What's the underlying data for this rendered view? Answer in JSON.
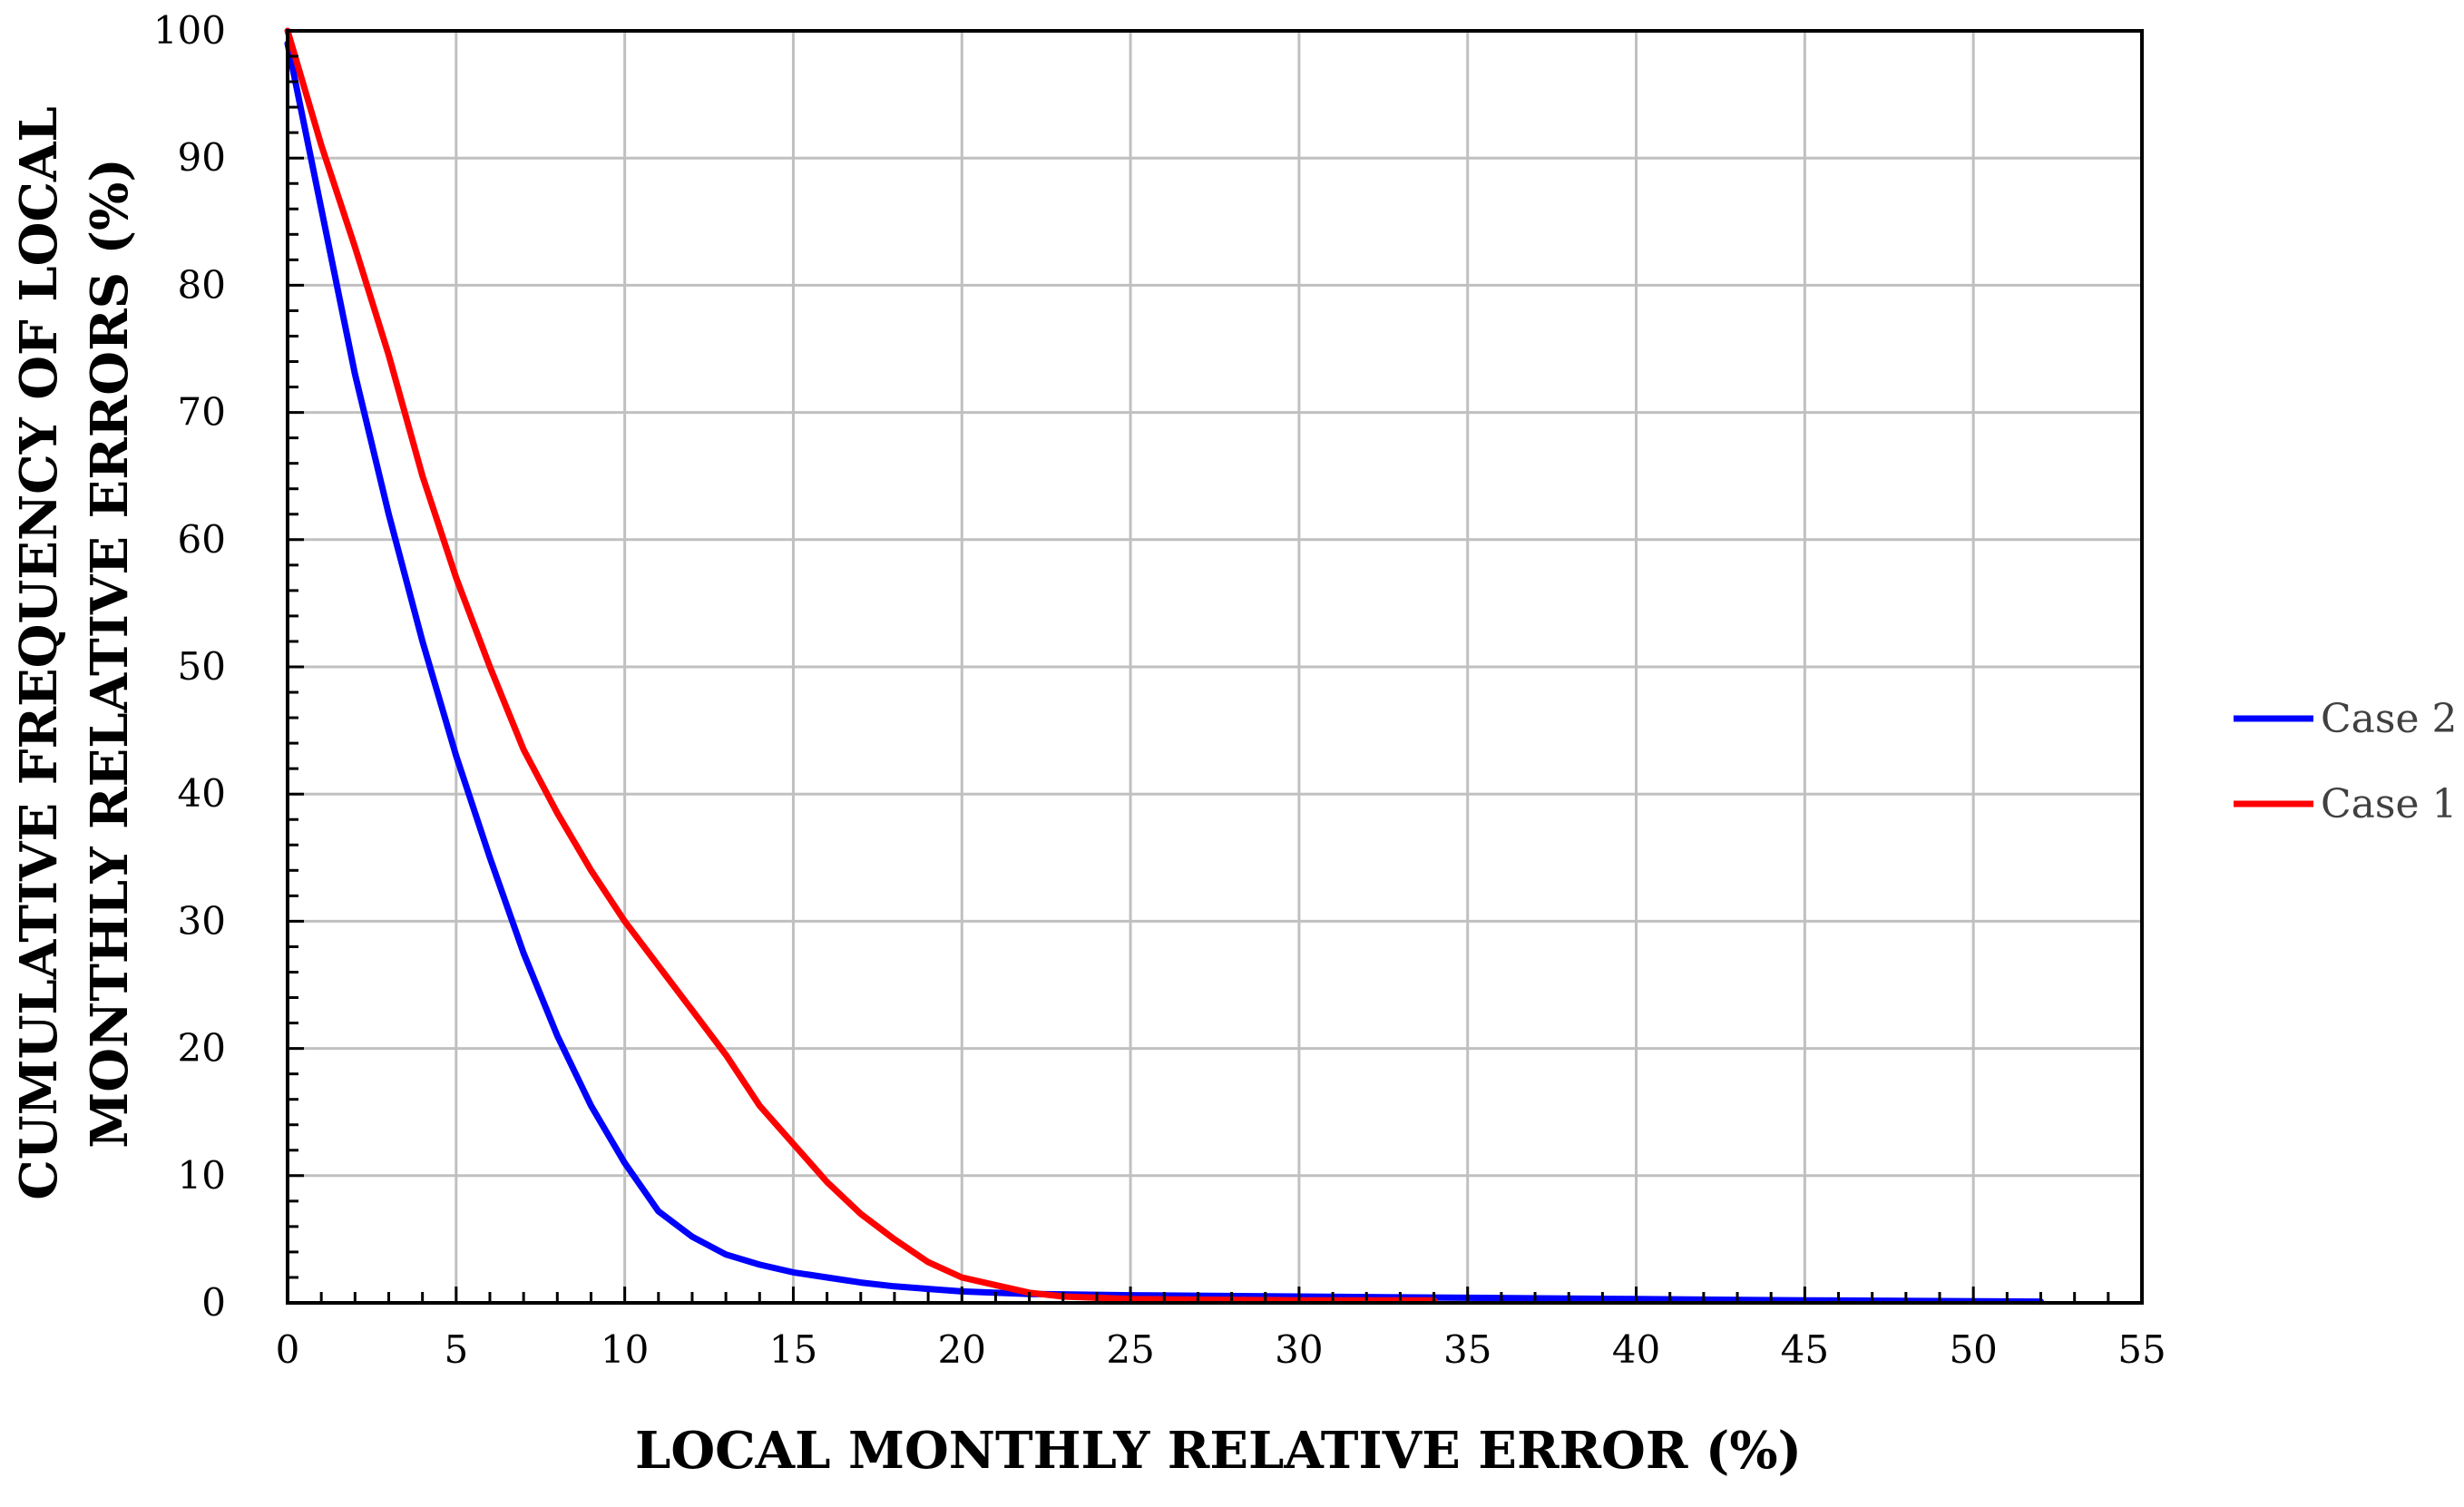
{
  "chart_data": {
    "type": "line",
    "xlabel": "LOCAL MONTHLY RELATIVE ERROR (%)",
    "ylabel_lines": [
      "CUMULATIVE FREQUENCY OF LOCAL",
      "MONTHLY RELATIVE ERRORS (%)"
    ],
    "xlim": [
      0,
      55
    ],
    "ylim": [
      0,
      100
    ],
    "x_ticks": [
      0,
      5,
      10,
      15,
      20,
      25,
      30,
      35,
      40,
      45,
      50,
      55
    ],
    "y_ticks": [
      0,
      10,
      20,
      30,
      40,
      50,
      60,
      70,
      80,
      90,
      100
    ],
    "x_tick_labels": [
      "0",
      "5",
      "10",
      "15",
      "20",
      "25",
      "30",
      "35",
      "40",
      "45",
      "50",
      "55"
    ],
    "y_tick_labels": [
      "0",
      "10",
      "20",
      "30",
      "40",
      "50",
      "60",
      "70",
      "80",
      "90",
      "100"
    ],
    "x_minor_step": 1,
    "y_minor_step": 2,
    "grid": true,
    "legend_position": "right",
    "series": [
      {
        "name": "Case 2",
        "color": "#0000ff",
        "points": [
          [
            0,
            99
          ],
          [
            1,
            86
          ],
          [
            2,
            73
          ],
          [
            3,
            62
          ],
          [
            4,
            52
          ],
          [
            5,
            43
          ],
          [
            6,
            35
          ],
          [
            7,
            27.5
          ],
          [
            8,
            21
          ],
          [
            9,
            15.5
          ],
          [
            10,
            11
          ],
          [
            11,
            7.2
          ],
          [
            12,
            5.2
          ],
          [
            13,
            3.8
          ],
          [
            14,
            3
          ],
          [
            15,
            2.4
          ],
          [
            16,
            2
          ],
          [
            17,
            1.6
          ],
          [
            18,
            1.3
          ],
          [
            19,
            1.1
          ],
          [
            20,
            0.9
          ],
          [
            22,
            0.7
          ],
          [
            25,
            0.6
          ],
          [
            30,
            0.5
          ],
          [
            35,
            0.4
          ],
          [
            40,
            0.3
          ],
          [
            45,
            0.2
          ],
          [
            52,
            0.1
          ]
        ]
      },
      {
        "name": "Case 1",
        "color": "#ff0000",
        "points": [
          [
            0,
            100
          ],
          [
            1,
            91
          ],
          [
            2,
            83
          ],
          [
            3,
            74.5
          ],
          [
            4,
            65
          ],
          [
            5,
            57
          ],
          [
            6,
            50
          ],
          [
            7,
            43.5
          ],
          [
            8,
            38.5
          ],
          [
            9,
            34
          ],
          [
            10,
            30
          ],
          [
            11,
            26.5
          ],
          [
            12,
            23
          ],
          [
            13,
            19.5
          ],
          [
            14,
            15.5
          ],
          [
            15,
            12.5
          ],
          [
            16,
            9.5
          ],
          [
            17,
            7
          ],
          [
            18,
            5
          ],
          [
            19,
            3.2
          ],
          [
            20,
            2
          ],
          [
            21,
            1.4
          ],
          [
            22,
            0.8
          ],
          [
            23,
            0.5
          ],
          [
            25,
            0.3
          ],
          [
            30,
            0.2
          ],
          [
            34,
            0.2
          ]
        ]
      }
    ]
  }
}
